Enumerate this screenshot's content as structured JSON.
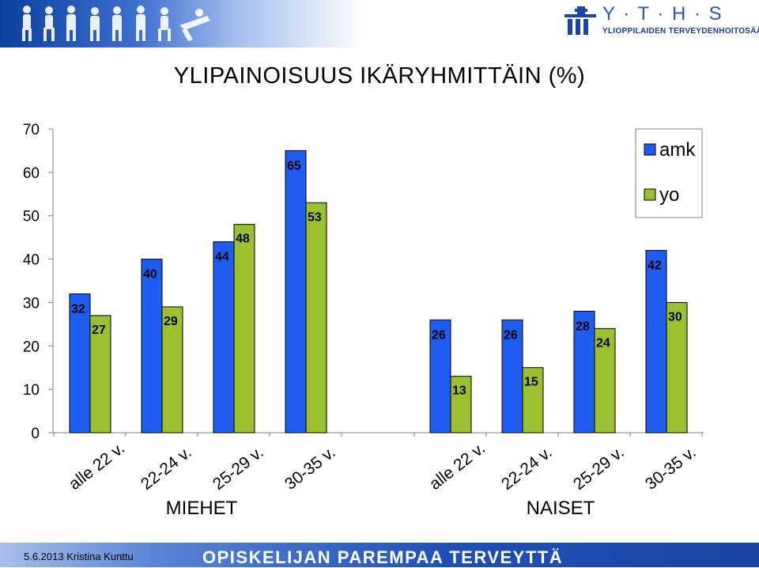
{
  "footer": {
    "date_author": "5.6.2013 Kristina Kunttu",
    "slogan": "OPISKELIJAN PAREMPAA TERVEYTTÄ"
  },
  "header": {
    "logo_letters": "Y · T · H · S",
    "logo_text": "YLIOPPILAIDEN TERVEYDENHOITOSÄÄTIÖ"
  },
  "colors": {
    "amk": "#1f5cf0",
    "yo": "#9bc02f",
    "accent": "#1a44a6"
  },
  "chart_data": {
    "type": "bar",
    "title": "YLIPAINOISUUS IKÄRYHMITTÄIN (%)",
    "ylim": [
      0,
      70
    ],
    "yticks": [
      0,
      10,
      20,
      30,
      40,
      50,
      60,
      70
    ],
    "grid": false,
    "legend_position": "top-right",
    "groups": [
      {
        "label": "MIEHET",
        "categories": [
          "alle 22 v.",
          "22-24 v.",
          "25-29 v.",
          "30-35 v."
        ]
      },
      {
        "label": "NAISET",
        "categories": [
          "alle 22 v.",
          "22-24 v.",
          "25-29 v.",
          "30-35 v."
        ]
      }
    ],
    "series": [
      {
        "name": "amk",
        "values": [
          32,
          40,
          44,
          65,
          26,
          26,
          28,
          42
        ]
      },
      {
        "name": "yo",
        "values": [
          27,
          29,
          48,
          53,
          13,
          15,
          24,
          30
        ]
      }
    ]
  }
}
